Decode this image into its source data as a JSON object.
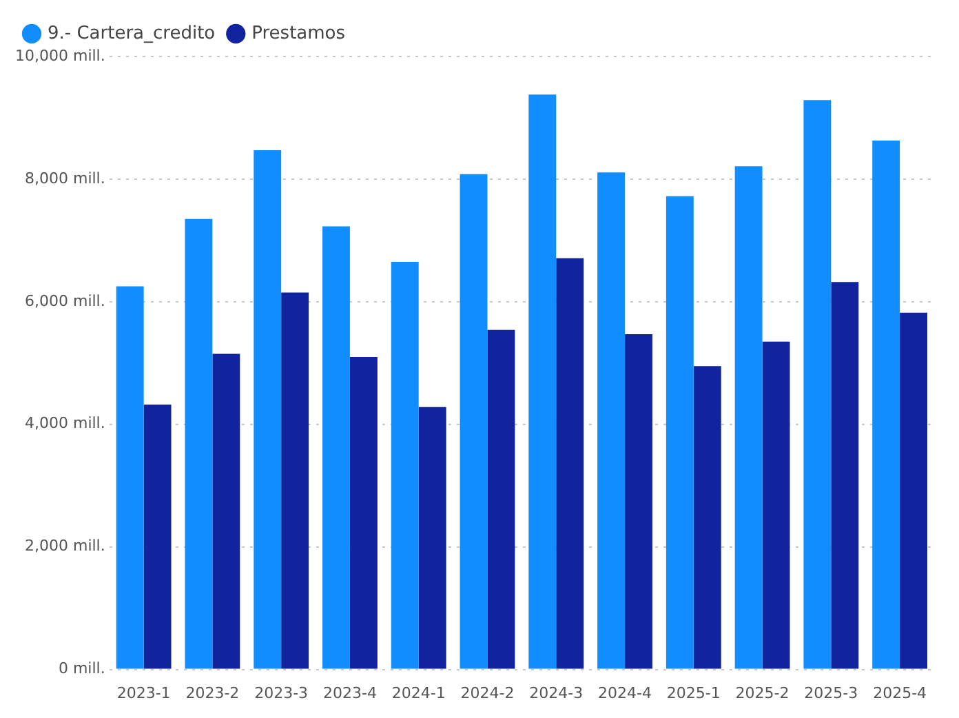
{
  "chart_data": {
    "type": "bar",
    "categories": [
      "2023-1",
      "2023-2",
      "2023-3",
      "2023-4",
      "2024-1",
      "2024-2",
      "2024-3",
      "2024-4",
      "2025-1",
      "2025-2",
      "2025-3",
      "2025-4"
    ],
    "series": [
      {
        "name": "9.- Cartera_credito",
        "color": "#118dff",
        "values": [
          6250,
          7350,
          8470,
          7230,
          6650,
          8080,
          9380,
          8110,
          7720,
          8210,
          9290,
          8630
        ]
      },
      {
        "name": "Prestamos",
        "color": "#12239e",
        "values": [
          4320,
          5150,
          6150,
          5100,
          4280,
          5540,
          6710,
          5470,
          4950,
          5350,
          6320,
          5820
        ]
      }
    ],
    "ylim": [
      0,
      10000
    ],
    "yticks": [
      {
        "value": 0,
        "label": "0 mill."
      },
      {
        "value": 2000,
        "label": "2,000 mill."
      },
      {
        "value": 4000,
        "label": "4,000 mill."
      },
      {
        "value": 6000,
        "label": "6,000 mill."
      },
      {
        "value": 8000,
        "label": "8,000 mill."
      },
      {
        "value": 10000,
        "label": "10,000 mill."
      }
    ],
    "grid": "y",
    "legend": "top left"
  }
}
